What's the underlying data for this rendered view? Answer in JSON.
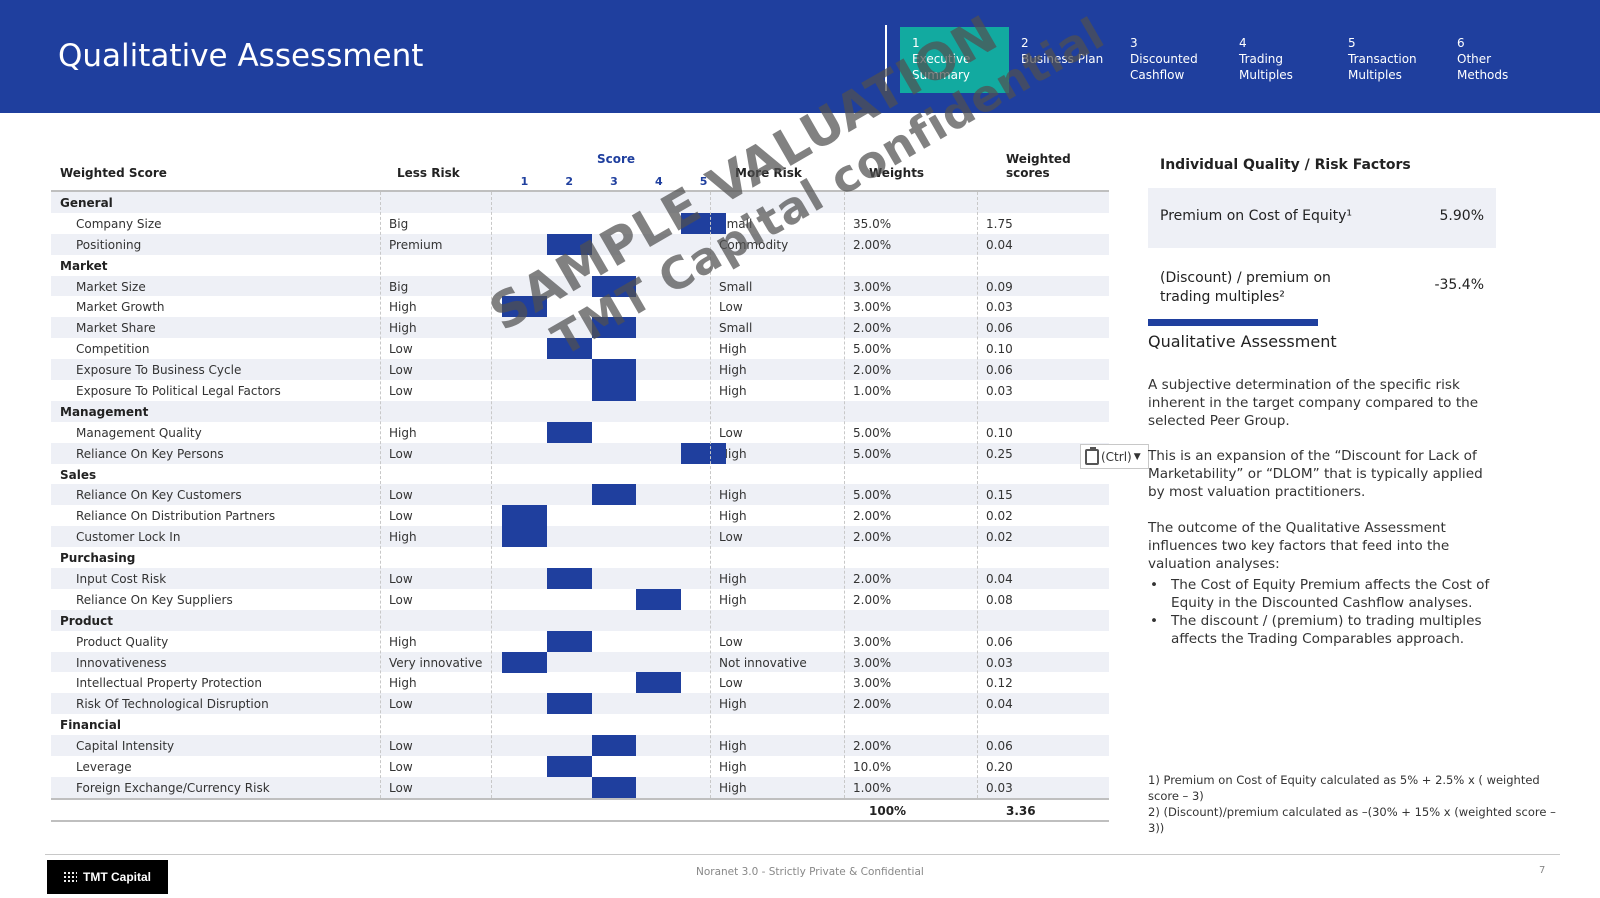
{
  "header": {
    "title": "Qualitative Assessment",
    "nav": [
      {
        "num": "1",
        "label": "Executive Summary",
        "active": true
      },
      {
        "num": "2",
        "label": "Business Plan",
        "active": false
      },
      {
        "num": "3",
        "label": "Discounted Cashflow",
        "active": false
      },
      {
        "num": "4",
        "label": "Trading Multiples",
        "active": false
      },
      {
        "num": "5",
        "label": "Transaction Multiples",
        "active": false
      },
      {
        "num": "6",
        "label": "Other Methods",
        "active": false
      }
    ]
  },
  "table": {
    "headers": {
      "weighted_score": "Weighted Score",
      "less_risk": "Less Risk",
      "score": "Score",
      "score_levels": [
        "1",
        "2",
        "3",
        "4",
        "5"
      ],
      "more_risk": "More Risk",
      "weights": "Weights",
      "weighted_scores": "Weighted scores"
    },
    "rows": [
      {
        "type": "category",
        "name": "General"
      },
      {
        "type": "item",
        "name": "Company Size",
        "less": "Big",
        "score": 5,
        "more": "Small",
        "weight": "35.0%",
        "ws": "1.75"
      },
      {
        "type": "item",
        "name": "Positioning",
        "less": "Premium",
        "score": 2,
        "more": "Commodity",
        "weight": "2.00%",
        "ws": "0.04"
      },
      {
        "type": "category",
        "name": "Market"
      },
      {
        "type": "item",
        "name": "Market Size",
        "less": "Big",
        "score": 3,
        "more": "Small",
        "weight": "3.00%",
        "ws": "0.09"
      },
      {
        "type": "item",
        "name": "Market Growth",
        "less": "High",
        "score": 1,
        "more": "Low",
        "weight": "3.00%",
        "ws": "0.03"
      },
      {
        "type": "item",
        "name": "Market Share",
        "less": "High",
        "score": 3,
        "more": "Small",
        "weight": "2.00%",
        "ws": "0.06"
      },
      {
        "type": "item",
        "name": "Competition",
        "less": "Low",
        "score": 2,
        "more": "High",
        "weight": "5.00%",
        "ws": "0.10"
      },
      {
        "type": "item",
        "name": "Exposure To Business Cycle",
        "less": "Low",
        "score": 3,
        "more": "High",
        "weight": "2.00%",
        "ws": "0.06"
      },
      {
        "type": "item",
        "name": "Exposure To Political Legal Factors",
        "less": "Low",
        "score": 3,
        "more": "High",
        "weight": "1.00%",
        "ws": "0.03"
      },
      {
        "type": "category",
        "name": "Management"
      },
      {
        "type": "item",
        "name": "Management Quality",
        "less": "High",
        "score": 2,
        "more": "Low",
        "weight": "5.00%",
        "ws": "0.10"
      },
      {
        "type": "item",
        "name": "Reliance On Key Persons",
        "less": "Low",
        "score": 5,
        "more": "High",
        "weight": "5.00%",
        "ws": "0.25"
      },
      {
        "type": "category",
        "name": "Sales"
      },
      {
        "type": "item",
        "name": "Reliance On Key Customers",
        "less": "Low",
        "score": 3,
        "more": "High",
        "weight": "5.00%",
        "ws": "0.15"
      },
      {
        "type": "item",
        "name": "Reliance On Distribution Partners",
        "less": "Low",
        "score": 1,
        "more": "High",
        "weight": "2.00%",
        "ws": "0.02"
      },
      {
        "type": "item",
        "name": "Customer Lock In",
        "less": "High",
        "score": 1,
        "more": "Low",
        "weight": "2.00%",
        "ws": "0.02"
      },
      {
        "type": "category",
        "name": "Purchasing"
      },
      {
        "type": "item",
        "name": "Input Cost Risk",
        "less": "Low",
        "score": 2,
        "more": "High",
        "weight": "2.00%",
        "ws": "0.04"
      },
      {
        "type": "item",
        "name": "Reliance On Key Suppliers",
        "less": "Low",
        "score": 4,
        "more": "High",
        "weight": "2.00%",
        "ws": "0.08"
      },
      {
        "type": "category",
        "name": "Product"
      },
      {
        "type": "item",
        "name": "Product Quality",
        "less": "High",
        "score": 2,
        "more": "Low",
        "weight": "3.00%",
        "ws": "0.06"
      },
      {
        "type": "item",
        "name": "Innovativeness",
        "less": "Very innovative",
        "score": 1,
        "more": "Not innovative",
        "weight": "3.00%",
        "ws": "0.03"
      },
      {
        "type": "item",
        "name": "Intellectual Property Protection",
        "less": "High",
        "score": 4,
        "more": "Low",
        "weight": "3.00%",
        "ws": "0.12"
      },
      {
        "type": "item",
        "name": "Risk Of Technological Disruption",
        "less": "Low",
        "score": 2,
        "more": "High",
        "weight": "2.00%",
        "ws": "0.04"
      },
      {
        "type": "category",
        "name": "Financial"
      },
      {
        "type": "item",
        "name": "Capital Intensity",
        "less": "Low",
        "score": 3,
        "more": "High",
        "weight": "2.00%",
        "ws": "0.06"
      },
      {
        "type": "item",
        "name": "Leverage",
        "less": "Low",
        "score": 2,
        "more": "High",
        "weight": "10.0%",
        "ws": "0.20"
      },
      {
        "type": "item",
        "name": "Foreign Exchange/Currency Risk",
        "less": "Low",
        "score": 3,
        "more": "High",
        "weight": "1.00%",
        "ws": "0.03"
      }
    ],
    "total_weight": "100%",
    "total_ws": "3.36",
    "bar_color": "#1f3f9e"
  },
  "watermark": {
    "line1": "SAMPLE VALUATION",
    "line2": "TMT Capital confidential"
  },
  "paste_options": {
    "label": "(Ctrl)",
    "icon": "clipboard-icon"
  },
  "panel": {
    "title": "Individual Quality / Risk Factors",
    "premium_label": "Premium on Cost of Equity¹",
    "premium_value": "5.90%",
    "discount_label": "(Discount) / premium on trading multiples²",
    "discount_value": "-35.4%",
    "qa_title": "Qualitative Assessment",
    "para1": "A subjective determination of the specific risk inherent in the target company compared to the selected Peer Group.",
    "para2": "This is an expansion of the “Discount for Lack of Marketability” or “DLOM” that is typically applied by most valuation practitioners.",
    "para3": "The outcome of the Qualitative Assessment influences two key factors that feed into the valuation analyses:",
    "bullets": [
      "The Cost of Equity Premium affects the Cost of Equity in the Discounted Cashflow analyses.",
      "The discount / (premium) to trading multiples affects the Trading Comparables approach."
    ]
  },
  "footnotes": [
    "1) Premium on Cost of Equity calculated as 5% + 2.5% x ( weighted score – 3)",
    "2) (Discount)/premium calculated as –(30% + 15% x (weighted score – 3))"
  ],
  "footer": {
    "logo": "TMT Capital",
    "center": "Noranet 3.0 - Strictly Private & Confidential",
    "page": "7"
  },
  "colors": {
    "header_bg": "#1f3f9e",
    "nav_active": "#12aaa0",
    "row_shade": "#eef0f6"
  }
}
